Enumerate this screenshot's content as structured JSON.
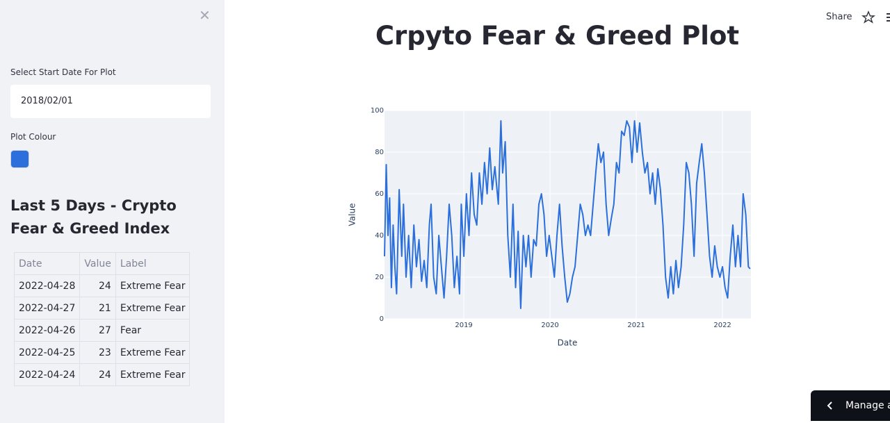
{
  "sidebar": {
    "date_label": "Select Start Date For Plot",
    "date_value": "2018/02/01",
    "colour_label": "Plot Colour",
    "table_title": "Last 5 Days - Crypto Fear & Greed Index",
    "table": {
      "header": [
        "Date",
        "Value",
        "Label"
      ],
      "rows": [
        [
          "2022-04-28",
          24,
          "Extreme Fear"
        ],
        [
          "2022-04-27",
          21,
          "Extreme Fear"
        ],
        [
          "2022-04-26",
          27,
          "Fear"
        ],
        [
          "2022-04-25",
          23,
          "Extreme Fear"
        ],
        [
          "2022-04-24",
          24,
          "Extreme Fear"
        ]
      ]
    }
  },
  "toolbar": {
    "share": "Share",
    "manage": "Manage app"
  },
  "chart_data": {
    "type": "line",
    "title": "Crpyto Fear & Greed Plot",
    "x_label": "Date",
    "y_label": "Value",
    "color": "#2a6fdb",
    "x": [
      2018.08,
      2018.1,
      2018.12,
      2018.14,
      2018.16,
      2018.18,
      2018.2,
      2018.22,
      2018.25,
      2018.28,
      2018.3,
      2018.33,
      2018.36,
      2018.39,
      2018.42,
      2018.45,
      2018.48,
      2018.51,
      2018.54,
      2018.57,
      2018.6,
      2018.62,
      2018.65,
      2018.68,
      2018.71,
      2018.74,
      2018.77,
      2018.8,
      2018.83,
      2018.86,
      2018.89,
      2018.92,
      2018.95,
      2018.97,
      2019.0,
      2019.03,
      2019.06,
      2019.09,
      2019.12,
      2019.15,
      2019.18,
      2019.21,
      2019.24,
      2019.27,
      2019.3,
      2019.33,
      2019.36,
      2019.4,
      2019.43,
      2019.45,
      2019.48,
      2019.51,
      2019.54,
      2019.57,
      2019.6,
      2019.63,
      2019.66,
      2019.69,
      2019.72,
      2019.75,
      2019.78,
      2019.81,
      2019.84,
      2019.87,
      2019.9,
      2019.93,
      2019.96,
      2019.99,
      2020.02,
      2020.05,
      2020.08,
      2020.11,
      2020.14,
      2020.17,
      2020.2,
      2020.23,
      2020.26,
      2020.29,
      2020.32,
      2020.35,
      2020.38,
      2020.41,
      2020.44,
      2020.47,
      2020.5,
      2020.53,
      2020.56,
      2020.59,
      2020.62,
      2020.65,
      2020.68,
      2020.71,
      2020.74,
      2020.77,
      2020.8,
      2020.83,
      2020.86,
      2020.89,
      2020.92,
      2020.95,
      2020.98,
      2021.01,
      2021.04,
      2021.07,
      2021.1,
      2021.13,
      2021.16,
      2021.19,
      2021.22,
      2021.25,
      2021.28,
      2021.31,
      2021.34,
      2021.37,
      2021.4,
      2021.43,
      2021.46,
      2021.49,
      2021.52,
      2021.55,
      2021.58,
      2021.61,
      2021.64,
      2021.67,
      2021.7,
      2021.73,
      2021.76,
      2021.79,
      2021.82,
      2021.85,
      2021.88,
      2021.91,
      2021.94,
      2021.97,
      2022.0,
      2022.03,
      2022.06,
      2022.09,
      2022.12,
      2022.15,
      2022.18,
      2022.21,
      2022.24,
      2022.27,
      2022.3,
      2022.32
    ],
    "values": [
      30,
      74,
      40,
      58,
      15,
      45,
      25,
      12,
      62,
      30,
      55,
      20,
      40,
      15,
      45,
      25,
      38,
      18,
      28,
      15,
      45,
      55,
      20,
      12,
      40,
      25,
      10,
      30,
      55,
      40,
      15,
      30,
      12,
      55,
      30,
      60,
      40,
      70,
      50,
      45,
      70,
      55,
      75,
      60,
      82,
      62,
      73,
      55,
      95,
      70,
      85,
      40,
      20,
      55,
      15,
      42,
      5,
      40,
      25,
      40,
      20,
      38,
      35,
      55,
      60,
      50,
      30,
      40,
      30,
      20,
      40,
      55,
      35,
      20,
      8,
      12,
      20,
      25,
      40,
      55,
      50,
      40,
      45,
      40,
      55,
      70,
      84,
      75,
      80,
      55,
      40,
      48,
      55,
      75,
      70,
      90,
      88,
      95,
      92,
      75,
      95,
      80,
      94,
      80,
      70,
      75,
      60,
      70,
      55,
      72,
      62,
      45,
      20,
      10,
      25,
      12,
      28,
      15,
      25,
      45,
      75,
      70,
      55,
      30,
      65,
      75,
      84,
      70,
      50,
      30,
      20,
      35,
      25,
      20,
      25,
      15,
      10,
      30,
      45,
      25,
      40,
      25,
      60,
      50,
      25,
      24
    ],
    "xlim": [
      2018.08,
      2022.33
    ],
    "xticks": [
      2019,
      2020,
      2021,
      2022
    ],
    "ylim": [
      0,
      100
    ],
    "yticks": [
      0,
      20,
      40,
      60,
      80,
      100
    ],
    "grid": true
  }
}
